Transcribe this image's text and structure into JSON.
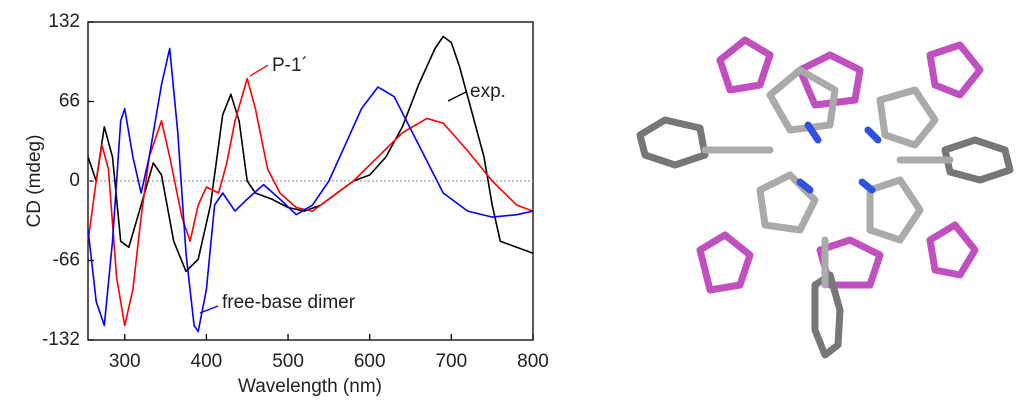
{
  "chart_data": {
    "type": "line",
    "y_label": "CD (mdeg)",
    "x_label": "Wavelength (nm)",
    "xlim": [
      255,
      800
    ],
    "xticks": [
      300,
      400,
      500,
      600,
      700,
      800
    ],
    "ylim": [
      -132,
      132
    ],
    "yticks": [
      -132,
      -66,
      0,
      66,
      132
    ],
    "zero_line": true,
    "annotations": [
      "P-1´",
      "exp.",
      "free-base dimer"
    ],
    "series": [
      {
        "name": "exp.",
        "color": "#000000",
        "x": [
          255,
          265,
          275,
          285,
          295,
          305,
          320,
          335,
          345,
          360,
          375,
          390,
          405,
          420,
          430,
          440,
          450,
          460,
          480,
          500,
          520,
          540,
          560,
          580,
          600,
          620,
          640,
          660,
          680,
          690,
          700,
          710,
          720,
          740,
          750,
          760,
          780,
          800
        ],
        "values": [
          20,
          0,
          45,
          20,
          -50,
          -55,
          -20,
          15,
          5,
          -50,
          -75,
          -65,
          -20,
          55,
          72,
          50,
          0,
          -10,
          -15,
          -22,
          -25,
          -20,
          -10,
          0,
          5,
          20,
          45,
          80,
          110,
          120,
          115,
          95,
          70,
          20,
          -20,
          -50,
          -55,
          -60
        ]
      },
      {
        "name": "P-1´",
        "color": "#ff0000",
        "x": [
          255,
          265,
          272,
          280,
          290,
          300,
          310,
          320,
          330,
          345,
          355,
          370,
          380,
          390,
          400,
          415,
          425,
          435,
          450,
          460,
          475,
          490,
          510,
          530,
          550,
          580,
          610,
          640,
          670,
          690,
          720,
          750,
          780,
          800
        ],
        "values": [
          -50,
          0,
          30,
          10,
          -80,
          -120,
          -90,
          -30,
          20,
          50,
          20,
          -30,
          -50,
          -20,
          -5,
          -10,
          15,
          50,
          85,
          60,
          10,
          -10,
          -22,
          -25,
          -15,
          0,
          20,
          40,
          52,
          48,
          25,
          0,
          -20,
          -25
        ]
      },
      {
        "name": "free-base dimer",
        "color": "#0000ff",
        "x": [
          255,
          265,
          275,
          285,
          295,
          300,
          310,
          320,
          330,
          345,
          355,
          365,
          375,
          385,
          390,
          400,
          410,
          420,
          435,
          450,
          470,
          490,
          510,
          530,
          550,
          570,
          590,
          610,
          630,
          660,
          690,
          720,
          750,
          780,
          800
        ],
        "values": [
          -40,
          -100,
          -120,
          -50,
          50,
          60,
          20,
          -10,
          20,
          80,
          110,
          40,
          -60,
          -120,
          -125,
          -90,
          -20,
          -10,
          -25,
          -15,
          -3,
          -15,
          -28,
          -20,
          0,
          30,
          60,
          78,
          70,
          30,
          -10,
          -25,
          -30,
          -28,
          -25
        ]
      }
    ]
  }
}
